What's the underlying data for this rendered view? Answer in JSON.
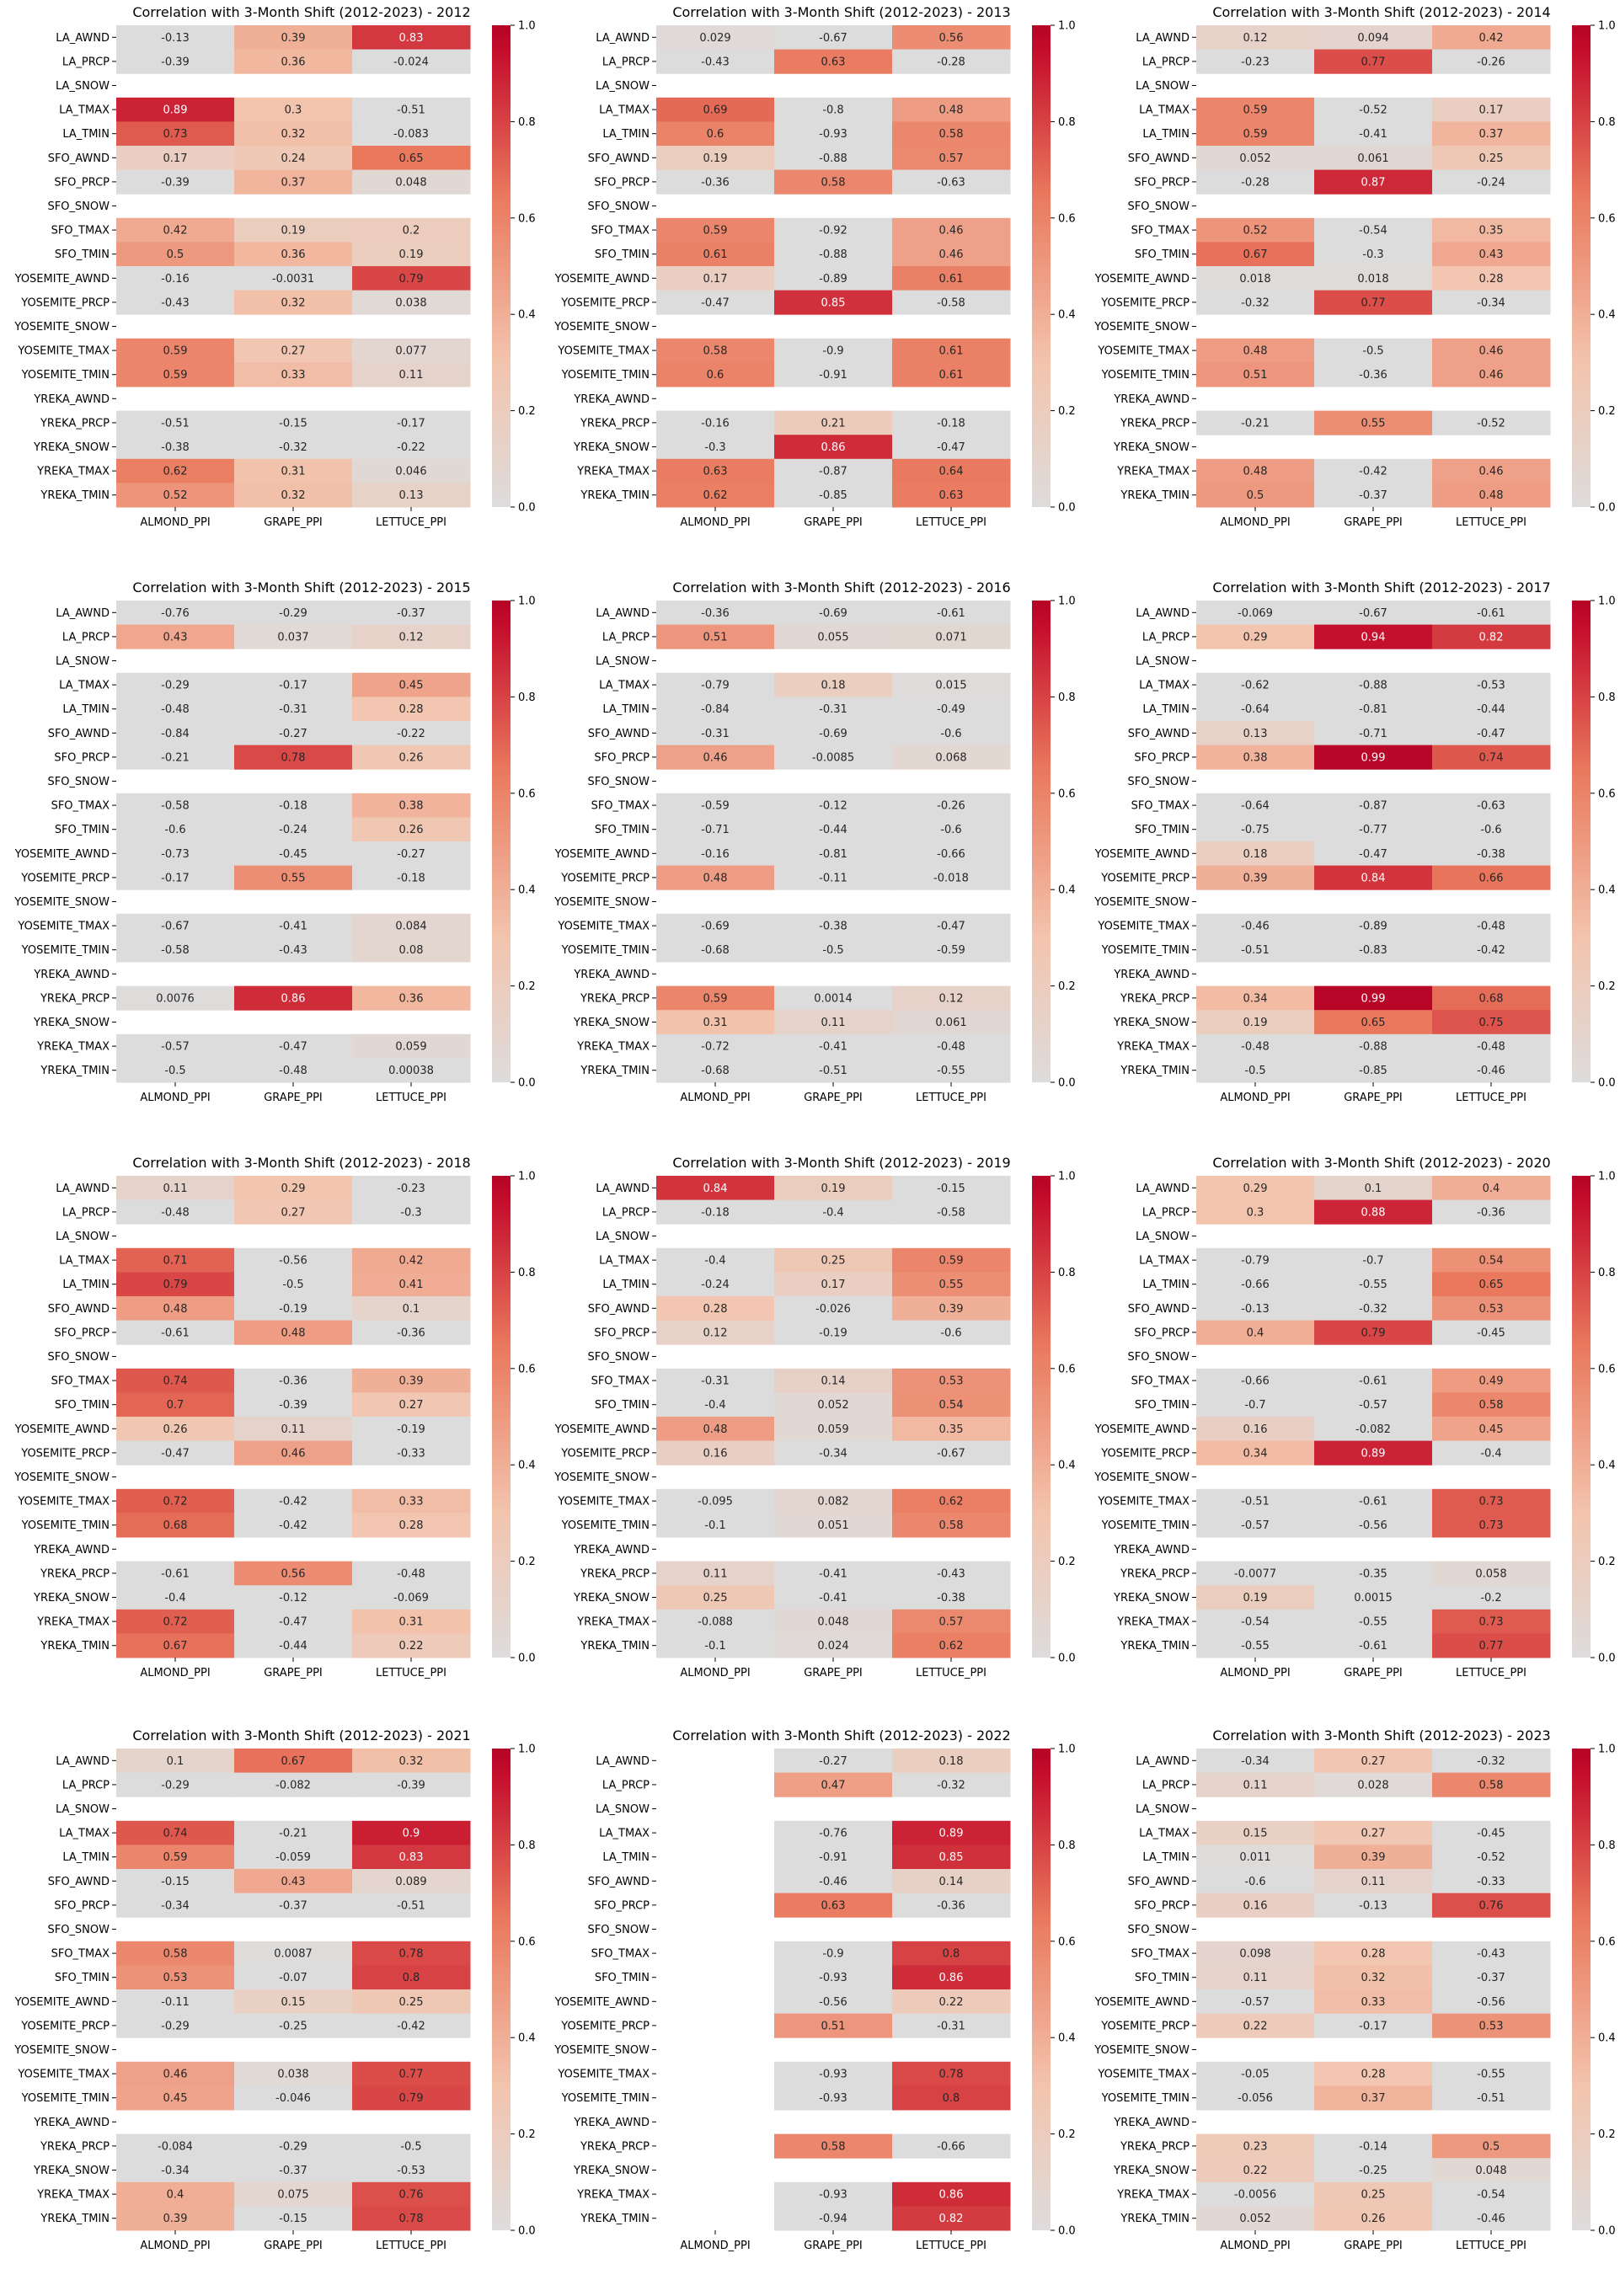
{
  "figure": {
    "row_labels": [
      "LA_AWND",
      "LA_PRCP",
      "LA_SNOW",
      "LA_TMAX",
      "LA_TMIN",
      "SFO_AWND",
      "SFO_PRCP",
      "SFO_SNOW",
      "SFO_TMAX",
      "SFO_TMIN",
      "YOSEMITE_AWND",
      "YOSEMITE_PRCP",
      "YOSEMITE_SNOW",
      "YOSEMITE_TMAX",
      "YOSEMITE_TMIN",
      "YREKA_AWND",
      "YREKA_PRCP",
      "YREKA_SNOW",
      "YREKA_TMAX",
      "YREKA_TMIN"
    ],
    "col_labels": [
      "ALMOND_PPI",
      "GRAPE_PPI",
      "LETTUCE_PPI"
    ],
    "colorbar_ticks": [
      "0.0",
      "0.2",
      "0.4",
      "0.6",
      "0.8",
      "1.0"
    ],
    "colors": {
      "zero": "#dddcdc",
      "low": "#f3c4ad",
      "mid": "#e9785d",
      "high": "#c40c2b",
      "top": "#b40426"
    }
  },
  "chart_data": [
    {
      "type": "heatmap",
      "title": "Correlation with 3-Month Shift (2012-2023) - 2012",
      "vmin": 0,
      "vmax": 1,
      "values": [
        [
          -0.13,
          0.39,
          0.83
        ],
        [
          -0.39,
          0.36,
          -0.024
        ],
        [
          null,
          null,
          null
        ],
        [
          0.89,
          0.3,
          -0.51
        ],
        [
          0.73,
          0.32,
          -0.083
        ],
        [
          0.17,
          0.24,
          0.65
        ],
        [
          -0.39,
          0.37,
          0.048
        ],
        [
          null,
          null,
          null
        ],
        [
          0.42,
          0.19,
          0.2
        ],
        [
          0.5,
          0.36,
          0.19
        ],
        [
          -0.16,
          -0.0031,
          0.79
        ],
        [
          -0.43,
          0.32,
          0.038
        ],
        [
          null,
          null,
          null
        ],
        [
          0.59,
          0.27,
          0.077
        ],
        [
          0.59,
          0.33,
          0.11
        ],
        [
          null,
          null,
          null
        ],
        [
          -0.51,
          -0.15,
          -0.17
        ],
        [
          -0.38,
          -0.32,
          -0.22
        ],
        [
          0.62,
          0.31,
          0.046
        ],
        [
          0.52,
          0.32,
          0.13
        ]
      ]
    },
    {
      "type": "heatmap",
      "title": "Correlation with 3-Month Shift (2012-2023) - 2013",
      "vmin": 0,
      "vmax": 1,
      "values": [
        [
          0.029,
          -0.67,
          0.56
        ],
        [
          -0.43,
          0.63,
          -0.28
        ],
        [
          null,
          null,
          null
        ],
        [
          0.69,
          -0.8,
          0.48
        ],
        [
          0.6,
          -0.93,
          0.58
        ],
        [
          0.19,
          -0.88,
          0.57
        ],
        [
          -0.36,
          0.58,
          -0.63
        ],
        [
          null,
          null,
          null
        ],
        [
          0.59,
          -0.92,
          0.46
        ],
        [
          0.61,
          -0.88,
          0.46
        ],
        [
          0.17,
          -0.89,
          0.61
        ],
        [
          -0.47,
          0.85,
          -0.58
        ],
        [
          null,
          null,
          null
        ],
        [
          0.58,
          -0.9,
          0.61
        ],
        [
          0.6,
          -0.91,
          0.61
        ],
        [
          null,
          null,
          null
        ],
        [
          -0.16,
          0.21,
          -0.18
        ],
        [
          -0.3,
          0.86,
          -0.47
        ],
        [
          0.63,
          -0.87,
          0.64
        ],
        [
          0.62,
          -0.85,
          0.63
        ]
      ]
    },
    {
      "type": "heatmap",
      "title": "Correlation with 3-Month Shift (2012-2023) - 2014",
      "vmin": 0,
      "vmax": 1,
      "values": [
        [
          0.12,
          0.094,
          0.42
        ],
        [
          -0.23,
          0.77,
          -0.26
        ],
        [
          null,
          null,
          null
        ],
        [
          0.59,
          -0.52,
          0.17
        ],
        [
          0.59,
          -0.41,
          0.37
        ],
        [
          0.052,
          0.061,
          0.25
        ],
        [
          -0.28,
          0.87,
          -0.24
        ],
        [
          null,
          null,
          null
        ],
        [
          0.52,
          -0.54,
          0.35
        ],
        [
          0.67,
          -0.3,
          0.43
        ],
        [
          0.018,
          0.018,
          0.28
        ],
        [
          -0.32,
          0.77,
          -0.34
        ],
        [
          null,
          null,
          null
        ],
        [
          0.48,
          -0.5,
          0.46
        ],
        [
          0.51,
          -0.36,
          0.46
        ],
        [
          null,
          null,
          null
        ],
        [
          -0.21,
          0.55,
          -0.52
        ],
        [
          null,
          null,
          null
        ],
        [
          0.48,
          -0.42,
          0.46
        ],
        [
          0.5,
          -0.37,
          0.48
        ]
      ]
    },
    {
      "type": "heatmap",
      "title": "Correlation with 3-Month Shift (2012-2023) - 2015",
      "vmin": 0,
      "vmax": 1,
      "values": [
        [
          -0.76,
          -0.29,
          -0.37
        ],
        [
          0.43,
          0.037,
          0.12
        ],
        [
          null,
          null,
          null
        ],
        [
          -0.29,
          -0.17,
          0.45
        ],
        [
          -0.48,
          -0.31,
          0.28
        ],
        [
          -0.84,
          -0.27,
          -0.22
        ],
        [
          -0.21,
          0.78,
          0.26
        ],
        [
          null,
          null,
          null
        ],
        [
          -0.58,
          -0.18,
          0.38
        ],
        [
          -0.6,
          -0.24,
          0.26
        ],
        [
          -0.73,
          -0.45,
          -0.27
        ],
        [
          -0.17,
          0.55,
          -0.18
        ],
        [
          null,
          null,
          null
        ],
        [
          -0.67,
          -0.41,
          0.084
        ],
        [
          -0.58,
          -0.43,
          0.08
        ],
        [
          null,
          null,
          null
        ],
        [
          0.0076,
          0.86,
          0.36
        ],
        [
          null,
          null,
          null
        ],
        [
          -0.57,
          -0.47,
          0.059
        ],
        [
          -0.5,
          -0.48,
          0.00038
        ]
      ]
    },
    {
      "type": "heatmap",
      "title": "Correlation with 3-Month Shift (2012-2023) - 2016",
      "vmin": 0,
      "vmax": 1,
      "values": [
        [
          -0.36,
          -0.69,
          -0.61
        ],
        [
          0.51,
          0.055,
          0.071
        ],
        [
          null,
          null,
          null
        ],
        [
          -0.79,
          0.18,
          0.015
        ],
        [
          -0.84,
          -0.31,
          -0.49
        ],
        [
          -0.31,
          -0.69,
          -0.6
        ],
        [
          0.46,
          -0.0085,
          0.068
        ],
        [
          null,
          null,
          null
        ],
        [
          -0.59,
          -0.12,
          -0.26
        ],
        [
          -0.71,
          -0.44,
          -0.6
        ],
        [
          -0.16,
          -0.81,
          -0.66
        ],
        [
          0.48,
          -0.11,
          -0.018
        ],
        [
          null,
          null,
          null
        ],
        [
          -0.69,
          -0.38,
          -0.47
        ],
        [
          -0.68,
          -0.5,
          -0.59
        ],
        [
          null,
          null,
          null
        ],
        [
          0.59,
          0.0014,
          0.12
        ],
        [
          0.31,
          0.11,
          0.061
        ],
        [
          -0.72,
          -0.41,
          -0.48
        ],
        [
          -0.68,
          -0.51,
          -0.55
        ]
      ]
    },
    {
      "type": "heatmap",
      "title": "Correlation with 3-Month Shift (2012-2023) - 2017",
      "vmin": 0,
      "vmax": 1,
      "values": [
        [
          -0.069,
          -0.67,
          -0.61
        ],
        [
          0.29,
          0.94,
          0.82
        ],
        [
          null,
          null,
          null
        ],
        [
          -0.62,
          -0.88,
          -0.53
        ],
        [
          -0.64,
          -0.81,
          -0.44
        ],
        [
          0.13,
          -0.71,
          -0.47
        ],
        [
          0.38,
          0.99,
          0.74
        ],
        [
          null,
          null,
          null
        ],
        [
          -0.64,
          -0.87,
          -0.63
        ],
        [
          -0.75,
          -0.77,
          -0.6
        ],
        [
          0.18,
          -0.47,
          -0.38
        ],
        [
          0.39,
          0.84,
          0.66
        ],
        [
          null,
          null,
          null
        ],
        [
          -0.46,
          -0.89,
          -0.48
        ],
        [
          -0.51,
          -0.83,
          -0.42
        ],
        [
          null,
          null,
          null
        ],
        [
          0.34,
          0.99,
          0.68
        ],
        [
          0.19,
          0.65,
          0.75
        ],
        [
          -0.48,
          -0.88,
          -0.48
        ],
        [
          -0.5,
          -0.85,
          -0.46
        ]
      ]
    },
    {
      "type": "heatmap",
      "title": "Correlation with 3-Month Shift (2012-2023) - 2018",
      "vmin": 0,
      "vmax": 1,
      "values": [
        [
          0.11,
          0.29,
          -0.23
        ],
        [
          -0.48,
          0.27,
          -0.3
        ],
        [
          null,
          null,
          null
        ],
        [
          0.71,
          -0.56,
          0.42
        ],
        [
          0.79,
          -0.5,
          0.41
        ],
        [
          0.48,
          -0.19,
          0.1
        ],
        [
          -0.61,
          0.48,
          -0.36
        ],
        [
          null,
          null,
          null
        ],
        [
          0.74,
          -0.36,
          0.39
        ],
        [
          0.7,
          -0.39,
          0.27
        ],
        [
          0.26,
          0.11,
          -0.19
        ],
        [
          -0.47,
          0.46,
          -0.33
        ],
        [
          null,
          null,
          null
        ],
        [
          0.72,
          -0.42,
          0.33
        ],
        [
          0.68,
          -0.42,
          0.28
        ],
        [
          null,
          null,
          null
        ],
        [
          -0.61,
          0.56,
          -0.48
        ],
        [
          -0.4,
          -0.12,
          -0.069
        ],
        [
          0.72,
          -0.47,
          0.31
        ],
        [
          0.67,
          -0.44,
          0.22
        ]
      ]
    },
    {
      "type": "heatmap",
      "title": "Correlation with 3-Month Shift (2012-2023) - 2019",
      "vmin": 0,
      "vmax": 1,
      "values": [
        [
          0.84,
          0.19,
          -0.15
        ],
        [
          -0.18,
          -0.4,
          -0.58
        ],
        [
          null,
          null,
          null
        ],
        [
          -0.4,
          0.25,
          0.59
        ],
        [
          -0.24,
          0.17,
          0.55
        ],
        [
          0.28,
          -0.026,
          0.39
        ],
        [
          0.12,
          -0.19,
          -0.6
        ],
        [
          null,
          null,
          null
        ],
        [
          -0.31,
          0.14,
          0.53
        ],
        [
          -0.4,
          0.052,
          0.54
        ],
        [
          0.48,
          0.059,
          0.35
        ],
        [
          0.16,
          -0.34,
          -0.67
        ],
        [
          null,
          null,
          null
        ],
        [
          -0.095,
          0.082,
          0.62
        ],
        [
          -0.1,
          0.051,
          0.58
        ],
        [
          null,
          null,
          null
        ],
        [
          0.11,
          -0.41,
          -0.43
        ],
        [
          0.25,
          -0.41,
          -0.38
        ],
        [
          -0.088,
          0.048,
          0.57
        ],
        [
          -0.1,
          0.024,
          0.62
        ]
      ]
    },
    {
      "type": "heatmap",
      "title": "Correlation with 3-Month Shift (2012-2023) - 2020",
      "vmin": 0,
      "vmax": 1,
      "values": [
        [
          0.29,
          0.1,
          0.4
        ],
        [
          0.3,
          0.88,
          -0.36
        ],
        [
          null,
          null,
          null
        ],
        [
          -0.79,
          -0.7,
          0.54
        ],
        [
          -0.66,
          -0.55,
          0.65
        ],
        [
          -0.13,
          -0.32,
          0.53
        ],
        [
          0.4,
          0.79,
          -0.45
        ],
        [
          null,
          null,
          null
        ],
        [
          -0.66,
          -0.61,
          0.49
        ],
        [
          -0.7,
          -0.57,
          0.58
        ],
        [
          0.16,
          -0.082,
          0.45
        ],
        [
          0.34,
          0.89,
          -0.4
        ],
        [
          null,
          null,
          null
        ],
        [
          -0.51,
          -0.61,
          0.73
        ],
        [
          -0.57,
          -0.56,
          0.73
        ],
        [
          null,
          null,
          null
        ],
        [
          -0.0077,
          -0.35,
          0.058
        ],
        [
          0.19,
          0.0015,
          -0.2
        ],
        [
          -0.54,
          -0.55,
          0.73
        ],
        [
          -0.55,
          -0.61,
          0.77
        ]
      ]
    },
    {
      "type": "heatmap",
      "title": "Correlation with 3-Month Shift (2012-2023) - 2021",
      "vmin": 0,
      "vmax": 1,
      "values": [
        [
          0.1,
          0.67,
          0.32
        ],
        [
          -0.29,
          -0.082,
          -0.39
        ],
        [
          null,
          null,
          null
        ],
        [
          0.74,
          -0.21,
          0.9
        ],
        [
          0.59,
          -0.059,
          0.83
        ],
        [
          -0.15,
          0.43,
          0.089
        ],
        [
          -0.34,
          -0.37,
          -0.51
        ],
        [
          null,
          null,
          null
        ],
        [
          0.58,
          0.0087,
          0.78
        ],
        [
          0.53,
          -0.07,
          0.8
        ],
        [
          -0.11,
          0.15,
          0.25
        ],
        [
          -0.29,
          -0.25,
          -0.42
        ],
        [
          null,
          null,
          null
        ],
        [
          0.46,
          0.038,
          0.77
        ],
        [
          0.45,
          -0.046,
          0.79
        ],
        [
          null,
          null,
          null
        ],
        [
          -0.084,
          -0.29,
          -0.5
        ],
        [
          -0.34,
          -0.37,
          -0.53
        ],
        [
          0.4,
          0.075,
          0.76
        ],
        [
          0.39,
          -0.15,
          0.78
        ]
      ]
    },
    {
      "type": "heatmap",
      "title": "Correlation with 3-Month Shift (2012-2023) - 2022",
      "vmin": 0,
      "vmax": 1,
      "values": [
        [
          null,
          -0.27,
          0.18
        ],
        [
          null,
          0.47,
          -0.32
        ],
        [
          null,
          null,
          null
        ],
        [
          null,
          -0.76,
          0.89
        ],
        [
          null,
          -0.91,
          0.85
        ],
        [
          null,
          -0.46,
          0.14
        ],
        [
          null,
          0.63,
          -0.36
        ],
        [
          null,
          null,
          null
        ],
        [
          null,
          -0.9,
          0.8
        ],
        [
          null,
          -0.93,
          0.86
        ],
        [
          null,
          -0.56,
          0.22
        ],
        [
          null,
          0.51,
          -0.31
        ],
        [
          null,
          null,
          null
        ],
        [
          null,
          -0.93,
          0.78
        ],
        [
          null,
          -0.93,
          0.8
        ],
        [
          null,
          null,
          null
        ],
        [
          null,
          0.58,
          -0.66
        ],
        [
          null,
          null,
          null
        ],
        [
          null,
          -0.93,
          0.86
        ],
        [
          null,
          -0.94,
          0.82
        ]
      ]
    },
    {
      "type": "heatmap",
      "title": "Correlation with 3-Month Shift (2012-2023) - 2023",
      "vmin": 0,
      "vmax": 1,
      "values": [
        [
          -0.34,
          0.27,
          -0.32
        ],
        [
          0.11,
          0.028,
          0.58
        ],
        [
          null,
          null,
          null
        ],
        [
          0.15,
          0.27,
          -0.45
        ],
        [
          0.011,
          0.39,
          -0.52
        ],
        [
          -0.6,
          0.11,
          -0.33
        ],
        [
          0.16,
          -0.13,
          0.76
        ],
        [
          null,
          null,
          null
        ],
        [
          0.098,
          0.28,
          -0.43
        ],
        [
          0.11,
          0.32,
          -0.37
        ],
        [
          -0.57,
          0.33,
          -0.56
        ],
        [
          0.22,
          -0.17,
          0.53
        ],
        [
          null,
          null,
          null
        ],
        [
          -0.05,
          0.28,
          -0.55
        ],
        [
          -0.056,
          0.37,
          -0.51
        ],
        [
          null,
          null,
          null
        ],
        [
          0.23,
          -0.14,
          0.5
        ],
        [
          0.22,
          -0.25,
          0.048
        ],
        [
          -0.0056,
          0.25,
          -0.54
        ],
        [
          0.052,
          0.26,
          -0.46
        ]
      ]
    }
  ]
}
